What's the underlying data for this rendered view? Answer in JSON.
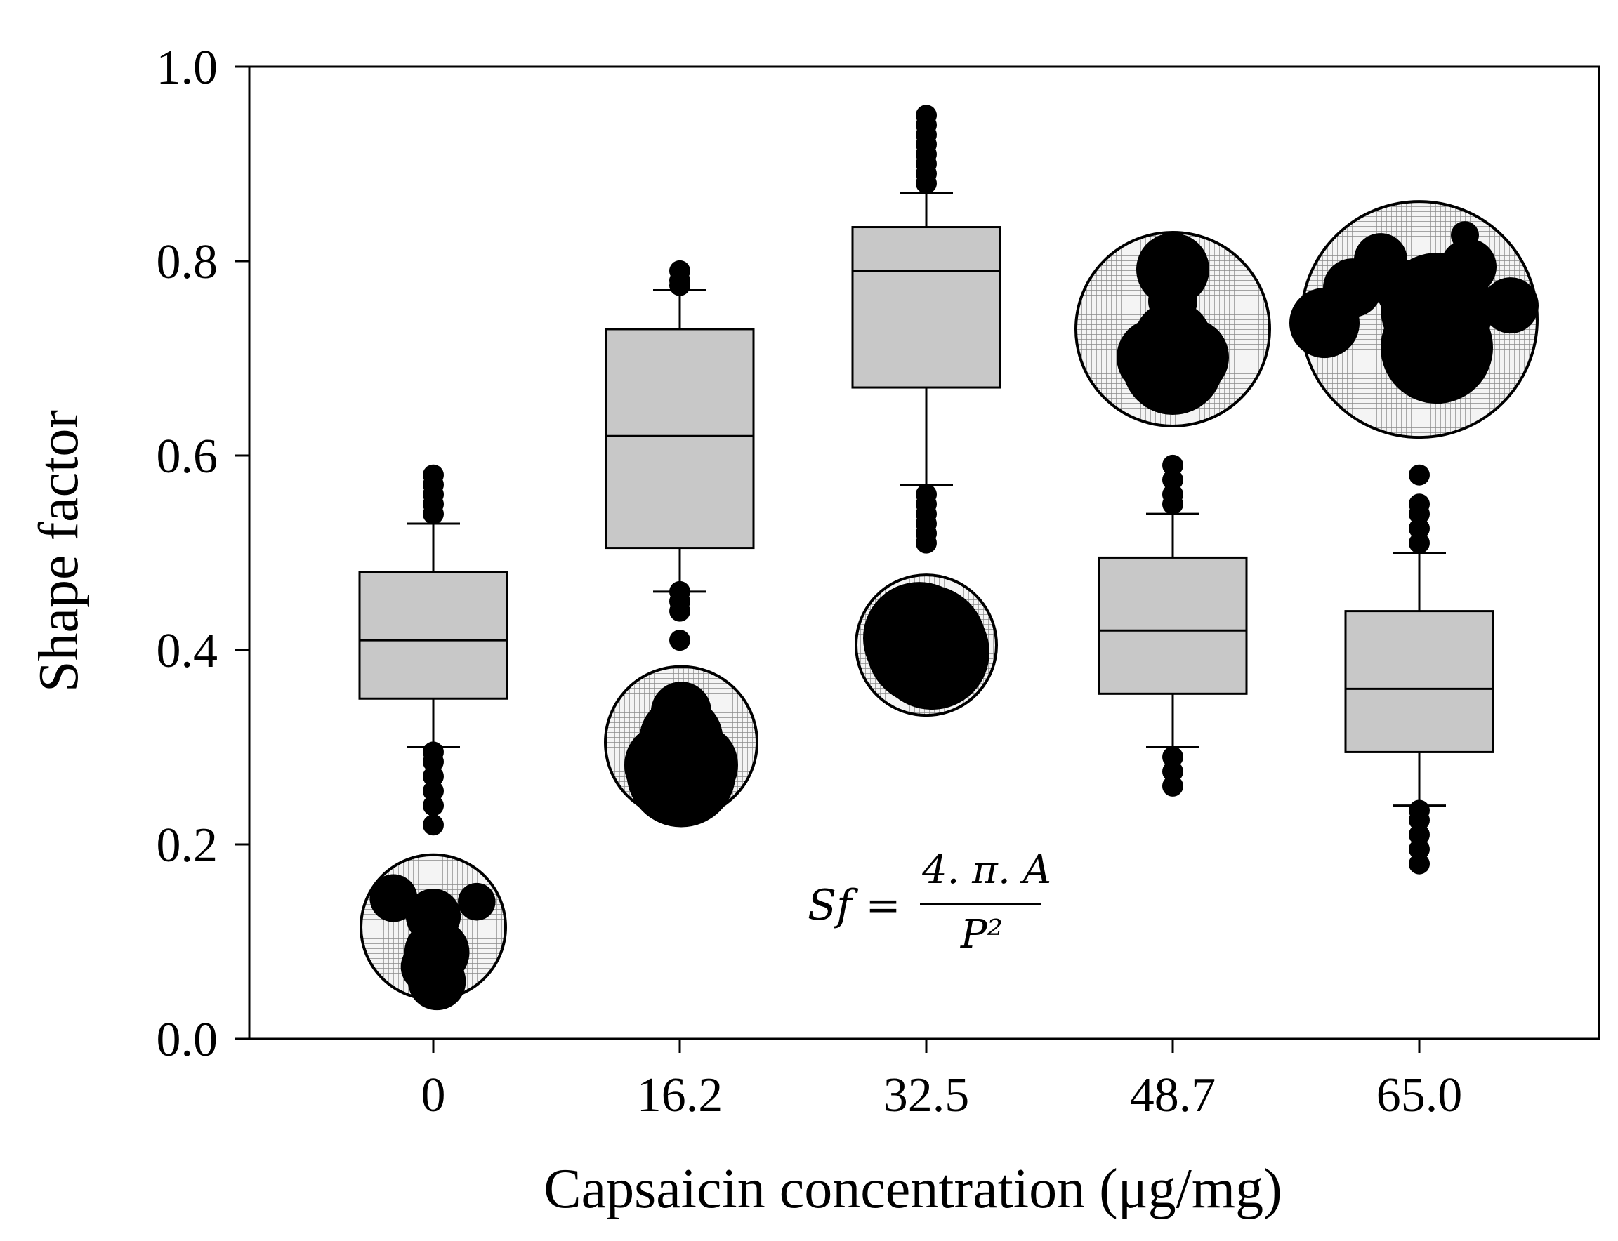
{
  "chart_data": {
    "type": "box",
    "title": "",
    "xlabel": "Capsaicin concentration (μg/mg)",
    "ylabel": "Shape factor",
    "ylim": [
      0,
      1
    ],
    "yticks": [
      "0.0",
      "0.2",
      "0.4",
      "0.6",
      "0.8",
      "1.0"
    ],
    "ytick_values": [
      0,
      0.2,
      0.4,
      0.6,
      0.8,
      1.0
    ],
    "categories": [
      "0",
      "16.2",
      "32.5",
      "48.7",
      "65.0"
    ],
    "boxes": [
      {
        "category": "0",
        "whisker_low": 0.3,
        "q1": 0.35,
        "median": 0.41,
        "q3": 0.48,
        "whisker_high": 0.53,
        "outliers": [
          0.22,
          0.24,
          0.255,
          0.27,
          0.285,
          0.295,
          0.54,
          0.55,
          0.56,
          0.57,
          0.58
        ]
      },
      {
        "category": "16.2",
        "whisker_low": 0.46,
        "q1": 0.505,
        "median": 0.62,
        "q3": 0.73,
        "whisker_high": 0.77,
        "outliers": [
          0.41,
          0.44,
          0.45,
          0.46,
          0.775,
          0.78,
          0.79
        ]
      },
      {
        "category": "32.5",
        "whisker_low": 0.57,
        "q1": 0.67,
        "median": 0.79,
        "q3": 0.835,
        "whisker_high": 0.87,
        "outliers": [
          0.51,
          0.52,
          0.53,
          0.54,
          0.55,
          0.56,
          0.88,
          0.89,
          0.9,
          0.91,
          0.92,
          0.93,
          0.94,
          0.95
        ]
      },
      {
        "category": "48.7",
        "whisker_low": 0.3,
        "q1": 0.355,
        "median": 0.42,
        "q3": 0.495,
        "whisker_high": 0.54,
        "outliers": [
          0.26,
          0.275,
          0.29,
          0.55,
          0.56,
          0.575,
          0.59
        ]
      },
      {
        "category": "65.0",
        "whisker_low": 0.24,
        "q1": 0.295,
        "median": 0.36,
        "q3": 0.44,
        "whisker_high": 0.5,
        "outliers": [
          0.18,
          0.195,
          0.21,
          0.225,
          0.235,
          0.51,
          0.525,
          0.54,
          0.55,
          0.58
        ]
      }
    ],
    "box_color": "#c8c8c8",
    "outlier_color": "#000000",
    "grid": false,
    "annotation": {
      "lhs": "Sf =",
      "numerator": "4. π. A",
      "denominator": "P²"
    },
    "insets": [
      {
        "category": "0",
        "shape": "budding-multi",
        "center_value": 0.115
      },
      {
        "category": "16.2",
        "shape": "pear",
        "center_value": 0.305
      },
      {
        "category": "32.5",
        "shape": "round",
        "center_value": 0.405
      },
      {
        "category": "48.7",
        "shape": "peanut",
        "center_value": 0.73
      },
      {
        "category": "65.0",
        "shape": "budding-cluster",
        "center_value": 0.74
      }
    ]
  }
}
